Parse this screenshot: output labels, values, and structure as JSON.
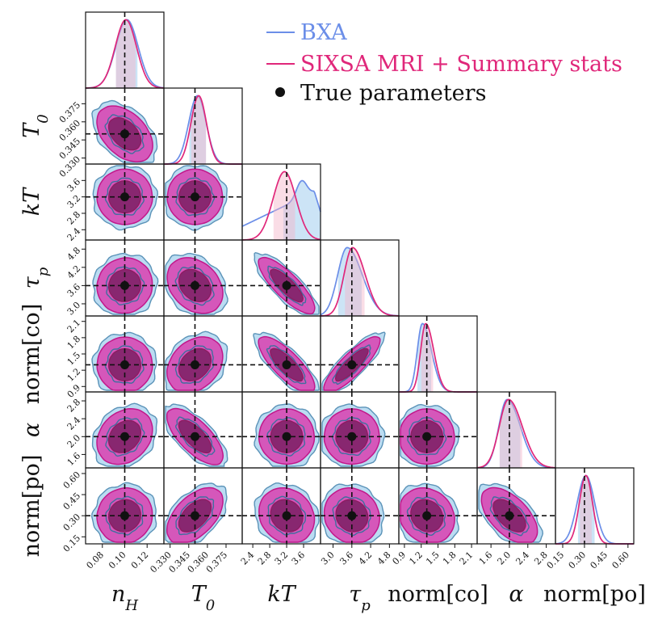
{
  "chart_data": {
    "type": "corner",
    "title": "",
    "parameters": [
      {
        "key": "nH",
        "label": "n_H",
        "display": "n",
        "sub": "H",
        "truth": 0.1,
        "range": [
          0.065,
          0.135
        ],
        "ticks": [
          0.08,
          0.1,
          0.12
        ],
        "tick_labels": [
          "0.08",
          "0.10",
          "0.12"
        ]
      },
      {
        "key": "T0",
        "label": "T_0",
        "display": "T",
        "sub": "0",
        "truth": 0.35,
        "range": [
          0.325,
          0.388
        ],
        "ticks": [
          0.33,
          0.345,
          0.36,
          0.375
        ],
        "tick_labels": [
          "0.330",
          "0.345",
          "0.360",
          "0.375"
        ]
      },
      {
        "key": "kT",
        "label": "kT",
        "display": "kT",
        "sub": "",
        "truth": 3.2,
        "range": [
          2.15,
          4.0
        ],
        "ticks": [
          2.4,
          2.8,
          3.2,
          3.6
        ],
        "tick_labels": [
          "2.4",
          "2.8",
          "3.2",
          "3.6"
        ]
      },
      {
        "key": "taup",
        "label": "τ_p",
        "display": "τ",
        "sub": "p",
        "truth": 3.6,
        "range": [
          2.6,
          5.1
        ],
        "ticks": [
          3.0,
          3.6,
          4.2,
          4.8
        ],
        "tick_labels": [
          "3.0",
          "3.6",
          "4.2",
          "4.8"
        ]
      },
      {
        "key": "normco",
        "label": "norm[co]",
        "display": "norm[co]",
        "sub": "",
        "truth": 1.3,
        "range": [
          0.8,
          2.2
        ],
        "ticks": [
          0.9,
          1.2,
          1.5,
          1.8,
          2.1
        ],
        "tick_labels": [
          "0.9",
          "1.2",
          "1.5",
          "1.8",
          "2.1"
        ]
      },
      {
        "key": "alpha",
        "label": "α",
        "display": "α",
        "sub": "",
        "truth": 2.0,
        "range": [
          1.3,
          3.0
        ],
        "ticks": [
          1.6,
          2.0,
          2.4,
          2.8
        ],
        "tick_labels": [
          "1.6",
          "2.0",
          "2.4",
          "2.8"
        ]
      },
      {
        "key": "normpo",
        "label": "norm[po]",
        "display": "norm[po]",
        "sub": "",
        "truth": 0.3,
        "range": [
          0.1,
          0.64
        ],
        "ticks": [
          0.15,
          0.3,
          0.45,
          0.6
        ],
        "tick_labels": [
          "0.15",
          "0.30",
          "0.45",
          "0.60"
        ]
      }
    ],
    "series": [
      {
        "name": "BXA",
        "color": "#6b8ee8",
        "fill": "#8ec4ea"
      },
      {
        "name": "SIXSA MRI + Summary stats",
        "color": "#e0277a",
        "fill": "#d93fb0"
      }
    ],
    "truth_label": "True parameters",
    "legend_position": "top-right",
    "marginals": {
      "BXA": [
        {
          "mode": 0.102,
          "sd": 0.01
        },
        {
          "mode": 0.352,
          "sd": 0.007
        },
        {
          "shape": "rising",
          "mode": 3.55,
          "sd": 0.45
        },
        {
          "mode": 3.45,
          "sd": 0.3,
          "skew": 0.6
        },
        {
          "mode": 1.22,
          "sd": 0.09,
          "skew": 0.8
        },
        {
          "mode": 1.95,
          "sd": 0.18,
          "skew": 0.6
        },
        {
          "mode": 0.31,
          "sd": 0.06
        }
      ],
      "SIXSA MRI + Summary stats": [
        {
          "mode": 0.101,
          "sd": 0.0095
        },
        {
          "mode": 0.353,
          "sd": 0.0062
        },
        {
          "mode": 3.15,
          "sd": 0.27
        },
        {
          "mode": 3.62,
          "sd": 0.27,
          "skew": 0.5
        },
        {
          "mode": 1.28,
          "sd": 0.09,
          "skew": 0.6
        },
        {
          "mode": 1.98,
          "sd": 0.2,
          "skew": 0.5
        },
        {
          "mode": 0.31,
          "sd": 0.045
        }
      ]
    },
    "correlations": {
      "1-0": -0.45,
      "2-0": 0.0,
      "2-1": 0.0,
      "3-0": 0.05,
      "3-1": -0.3,
      "3-2": -0.88,
      "4-0": 0.0,
      "4-1": 0.3,
      "4-2": -0.85,
      "4-3": 0.92,
      "5-0": 0.25,
      "5-1": -0.75,
      "5-2": 0.0,
      "5-3": 0.0,
      "5-4": 0.0,
      "6-0": 0.05,
      "6-1": 0.55,
      "6-2": -0.15,
      "6-3": -0.1,
      "6-4": -0.15,
      "6-5": -0.6
    }
  }
}
